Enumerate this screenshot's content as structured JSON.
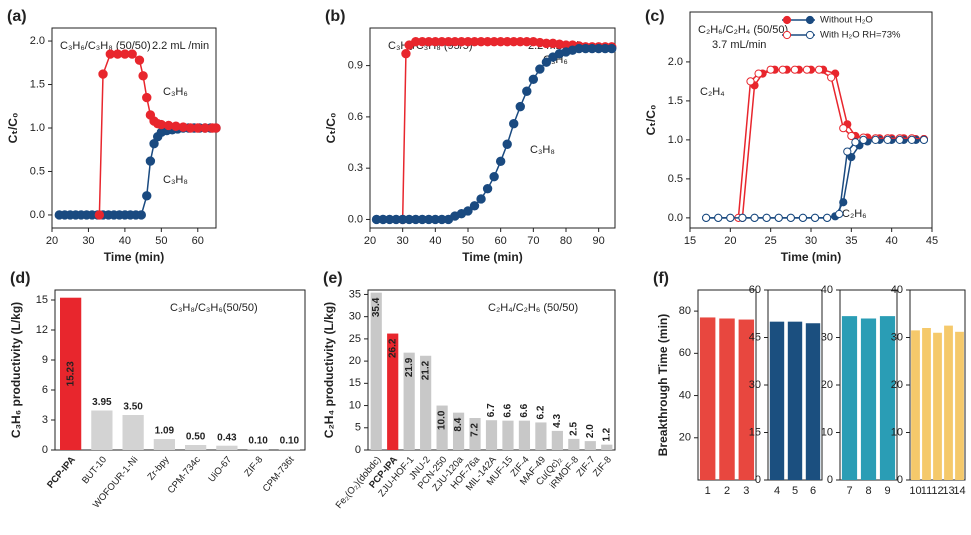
{
  "chart_data": [
    {
      "label": "(a)",
      "type": "line",
      "xlabel": "Time (min)",
      "ylabel": "Cₜ/C₀",
      "xlim": [
        20,
        65
      ],
      "ylim": [
        -0.15,
        2.15
      ],
      "xticks": [
        20,
        30,
        40,
        50,
        60
      ],
      "yticks": [
        {
          "value": 0,
          "label": "0.0"
        },
        0.5,
        {
          "value": 1,
          "label": "1.0"
        },
        1.5,
        {
          "value": 2,
          "label": "2.0"
        }
      ],
      "annotations": [
        "C₃H₆/C₃H₈ (50/50)",
        "2.2  mL /min",
        "C₃H₆",
        "C₃H₈"
      ],
      "series": [
        {
          "color": "#1a4a80",
          "marker": "filled",
          "x": [
            22,
            23.5,
            25,
            26.5,
            28,
            29.5,
            31,
            32.5,
            34,
            35.5,
            37,
            38.5,
            40,
            41.5,
            43,
            44.5,
            46,
            47,
            48,
            49,
            50,
            51.5,
            53,
            54.5,
            56,
            57.5,
            59,
            60.5,
            62,
            63.5,
            65
          ],
          "values": [
            0,
            0,
            0,
            0,
            0,
            0,
            0,
            0,
            0,
            0,
            0,
            0,
            0,
            0,
            0,
            0,
            0.22,
            0.62,
            0.82,
            0.9,
            0.95,
            0.97,
            0.98,
            0.99,
            1,
            1,
            1,
            1,
            1,
            1,
            1
          ]
        },
        {
          "color": "#e8262d",
          "marker": "filled",
          "x": [
            33,
            34,
            36,
            38,
            40,
            42,
            44,
            45,
            46,
            47,
            48,
            49,
            50,
            52,
            54,
            56,
            58,
            60,
            62,
            64,
            65
          ],
          "values": [
            0,
            1.62,
            1.85,
            1.85,
            1.85,
            1.85,
            1.78,
            1.6,
            1.35,
            1.15,
            1.08,
            1.05,
            1.04,
            1.03,
            1.02,
            1.01,
            1,
            1,
            1,
            1,
            1
          ]
        }
      ]
    },
    {
      "label": "(b)",
      "type": "line",
      "xlabel": "Time (min)",
      "ylabel": "Cₜ/C₀",
      "xlim": [
        20,
        95
      ],
      "ylim": [
        -0.05,
        1.12
      ],
      "xticks": [
        20,
        30,
        40,
        50,
        60,
        70,
        80,
        90
      ],
      "yticks": [
        {
          "value": 0,
          "label": "0.0"
        },
        0.3,
        0.6,
        0.9
      ],
      "annotations": [
        "C₃H₆/C₃H₈ (95/5)",
        "2.2  mL /min",
        "C₃H₆",
        "C₃H₈"
      ],
      "series": [
        {
          "color": "#e8262d",
          "marker": "filled",
          "x": [
            30,
            31,
            32,
            34,
            36,
            38,
            40,
            42,
            44,
            46,
            48,
            50,
            52,
            54,
            56,
            58,
            60,
            62,
            64,
            66,
            68,
            70,
            72,
            74,
            76,
            78,
            80,
            82,
            84,
            86,
            88,
            90,
            92,
            94
          ],
          "values": [
            0,
            0.97,
            1.02,
            1.04,
            1.04,
            1.04,
            1.04,
            1.04,
            1.04,
            1.04,
            1.04,
            1.04,
            1.04,
            1.04,
            1.04,
            1.04,
            1.04,
            1.04,
            1.04,
            1.04,
            1.04,
            1.04,
            1.035,
            1.03,
            1.03,
            1.025,
            1.02,
            1.02,
            1.015,
            1.01,
            1.01,
            1.01,
            1.01,
            1.01
          ]
        },
        {
          "color": "#1a4a80",
          "marker": "filled",
          "x": [
            22,
            24,
            26,
            28,
            30,
            32,
            34,
            36,
            38,
            40,
            42,
            44,
            46,
            48,
            50,
            52,
            54,
            56,
            58,
            60,
            62,
            64,
            66,
            68,
            70,
            72,
            74,
            76,
            78,
            80,
            82,
            84,
            86,
            88,
            90,
            92,
            94
          ],
          "values": [
            0,
            0,
            0,
            0,
            0,
            0,
            0,
            0,
            0,
            0,
            0,
            0,
            0.02,
            0.034,
            0.05,
            0.08,
            0.12,
            0.18,
            0.25,
            0.34,
            0.44,
            0.56,
            0.66,
            0.75,
            0.82,
            0.88,
            0.92,
            0.95,
            0.97,
            0.98,
            0.99,
            1,
            1,
            1,
            1,
            1,
            1
          ]
        }
      ]
    },
    {
      "label": "(c)",
      "type": "line",
      "xlabel": "Time (min)",
      "ylabel": "Cₜ/C₀",
      "xlim": [
        15,
        45
      ],
      "ylim": [
        -0.13,
        2.64
      ],
      "xticks": [
        15,
        20,
        25,
        30,
        35,
        40,
        45
      ],
      "yticks": [
        {
          "value": 0,
          "label": "0.0"
        },
        0.5,
        {
          "value": 1,
          "label": "1.0"
        },
        1.5,
        {
          "value": 2,
          "label": "2.0"
        }
      ],
      "legend": "upper right",
      "annotations": [
        "C₂H₆/C₂H₄ (50/50)",
        "3.7 mL/min",
        "C₂H₄",
        "C₂H₆"
      ],
      "series": [
        {
          "name": "Without H₂O",
          "color": "#e8262d",
          "marker": "filled",
          "x": [
            21.5,
            23,
            24,
            25.5,
            27,
            28.5,
            30,
            31.5,
            33,
            34.5,
            35.5,
            37,
            38.5,
            40,
            41.5,
            43,
            44
          ],
          "values": [
            0,
            1.7,
            1.85,
            1.9,
            1.9,
            1.9,
            1.9,
            1.9,
            1.85,
            1.2,
            1.05,
            1.03,
            1.02,
            1.02,
            1.02,
            1.01,
            1.01
          ]
        },
        {
          "name": "Without H₂O",
          "color": "#1a4a80",
          "marker": "filled",
          "x": [
            17,
            18.5,
            20,
            21.5,
            23,
            24.5,
            26,
            27.5,
            29,
            30.5,
            32,
            33,
            34,
            35,
            36,
            37,
            38.5,
            40,
            41.5,
            43,
            44
          ],
          "values": [
            0,
            0,
            0,
            0,
            0,
            0,
            0,
            0,
            0,
            0,
            0,
            0.02,
            0.2,
            0.78,
            0.93,
            0.98,
            1,
            1,
            1,
            1,
            1
          ]
        },
        {
          "name": "With H₂O RH=73%",
          "color": "#e8262d",
          "marker": "hollow",
          "x": [
            21,
            22.5,
            23.5,
            25,
            26.5,
            28,
            29.5,
            31,
            32.5,
            34,
            35,
            36.5,
            38,
            39.5,
            41,
            42.5,
            44
          ],
          "values": [
            0,
            1.75,
            1.85,
            1.9,
            1.9,
            1.9,
            1.9,
            1.9,
            1.8,
            1.15,
            1.05,
            1.03,
            1.02,
            1.02,
            1.02,
            1.02,
            1.01
          ]
        },
        {
          "name": "With H₂O RH=73%",
          "color": "#1a4a80",
          "marker": "hollow",
          "x": [
            17,
            18.5,
            20,
            21.5,
            23,
            24.5,
            26,
            27.5,
            29,
            30.5,
            32,
            33.5,
            34.5,
            35.5,
            36.5,
            38,
            39.5,
            41,
            42.5,
            44
          ],
          "values": [
            0,
            0,
            0,
            0,
            0,
            0,
            0,
            0,
            0,
            0,
            0,
            0.05,
            0.85,
            0.97,
            1,
            1,
            1,
            1,
            1,
            1
          ]
        }
      ]
    },
    {
      "label": "(d)",
      "type": "bar",
      "ylabel": "C₃H₆ productivity (L/kg)",
      "ylim": [
        0,
        16
      ],
      "yticks": [
        0,
        3,
        6,
        9,
        12,
        15
      ],
      "annotations": [
        "C₃H₈/C₃H₆(50/50)"
      ],
      "categories": [
        "PCP-IPA",
        "BUT-10",
        "WOFOUR-1-Ni",
        "Zr-bpy",
        "CPM-734c",
        "UiO-67",
        "ZIF-8",
        "CPM-736t"
      ],
      "values": [
        15.23,
        3.95,
        3.5,
        1.09,
        0.5,
        0.43,
        0.1,
        0.1
      ],
      "value_labels": [
        "15.23",
        "3.95",
        "3.50",
        "1.09",
        "0.50",
        "0.43",
        "0.10",
        "0.10"
      ],
      "colors": [
        "#e8262d",
        "#d3d3d3",
        "#d3d3d3",
        "#d3d3d3",
        "#d3d3d3",
        "#d3d3d3",
        "#d3d3d3",
        "#d3d3d3"
      ],
      "label_colors": [
        "#e8262d",
        "#222222",
        "#222222",
        "#222222",
        "#222222",
        "#222222",
        "#222222",
        "#222222"
      ]
    },
    {
      "label": "(e)",
      "type": "bar",
      "ylabel": "C₂H₄ productivity (L/kg)",
      "ylim": [
        0,
        36
      ],
      "yticks": [
        0,
        5,
        10,
        15,
        20,
        25,
        30,
        35
      ],
      "annotations": [
        "C₂H₄/C₂H₆ (50/50)"
      ],
      "categories": [
        "Fe₂(O₂)(dobdc)",
        "PCP-IPA",
        "ZJU-HOF-1",
        "JNU-2",
        "PCN-250",
        "ZJU-120a",
        "HOF-76a",
        "MIL-142A",
        "MUF-15",
        "ZIF-4",
        "MAF-49",
        "Cu(Qc)₂",
        "iRMOF-8",
        "ZIF-7",
        "ZIF-8"
      ],
      "values": [
        35.4,
        26.2,
        21.9,
        21.2,
        10.0,
        8.4,
        7.2,
        6.7,
        6.6,
        6.6,
        6.2,
        4.3,
        2.5,
        2.0,
        1.2
      ],
      "value_labels": [
        "35.4",
        "26.2",
        "21.9",
        "21.2",
        "10.0",
        "8.4",
        "7.2",
        "6.7",
        "6.6",
        "6.6",
        "6.2",
        "4.3",
        "2.5",
        "2.0",
        "1.2"
      ],
      "colors": [
        "#c8c8c8",
        "#e8262d",
        "#c8c8c8",
        "#c8c8c8",
        "#c8c8c8",
        "#c8c8c8",
        "#c8c8c8",
        "#c8c8c8",
        "#c8c8c8",
        "#c8c8c8",
        "#c8c8c8",
        "#c8c8c8",
        "#c8c8c8",
        "#c8c8c8",
        "#c8c8c8"
      ],
      "label_colors": [
        "#222222",
        "#e8262d",
        "#222222",
        "#222222",
        "#222222",
        "#222222",
        "#222222",
        "#222222",
        "#222222",
        "#222222",
        "#222222",
        "#222222",
        "#222222",
        "#222222",
        "#222222"
      ]
    },
    {
      "label": "(f)",
      "type": "bar",
      "ylabel": "Breakthrough Time (min)",
      "ylim": [
        0,
        90
      ],
      "yticks": [
        20,
        40,
        60,
        80
      ],
      "categories": [
        "1",
        "2",
        "3"
      ],
      "values": [
        77,
        76.5,
        76
      ],
      "color": "#e8473f"
    },
    {
      "type": "bar",
      "ylim": [
        0,
        60
      ],
      "yticks": [
        0,
        15,
        30,
        45,
        60
      ],
      "categories": [
        "4",
        "5",
        "6"
      ],
      "values": [
        50,
        50,
        49.5
      ],
      "color": "#1b4f7f"
    },
    {
      "type": "bar",
      "ylim": [
        0,
        40
      ],
      "yticks": [
        0,
        10,
        20,
        30,
        40
      ],
      "categories": [
        "7",
        "8",
        "9"
      ],
      "values": [
        34.5,
        34,
        34.5
      ],
      "color": "#2a9db5"
    },
    {
      "type": "bar",
      "ylim": [
        0,
        40
      ],
      "yticks": [
        0,
        10,
        20,
        30,
        40
      ],
      "categories": [
        "10",
        "11",
        "12",
        "13",
        "14"
      ],
      "values": [
        31.5,
        32,
        31,
        32.5,
        31.2
      ],
      "color": "#f5c96b"
    }
  ]
}
